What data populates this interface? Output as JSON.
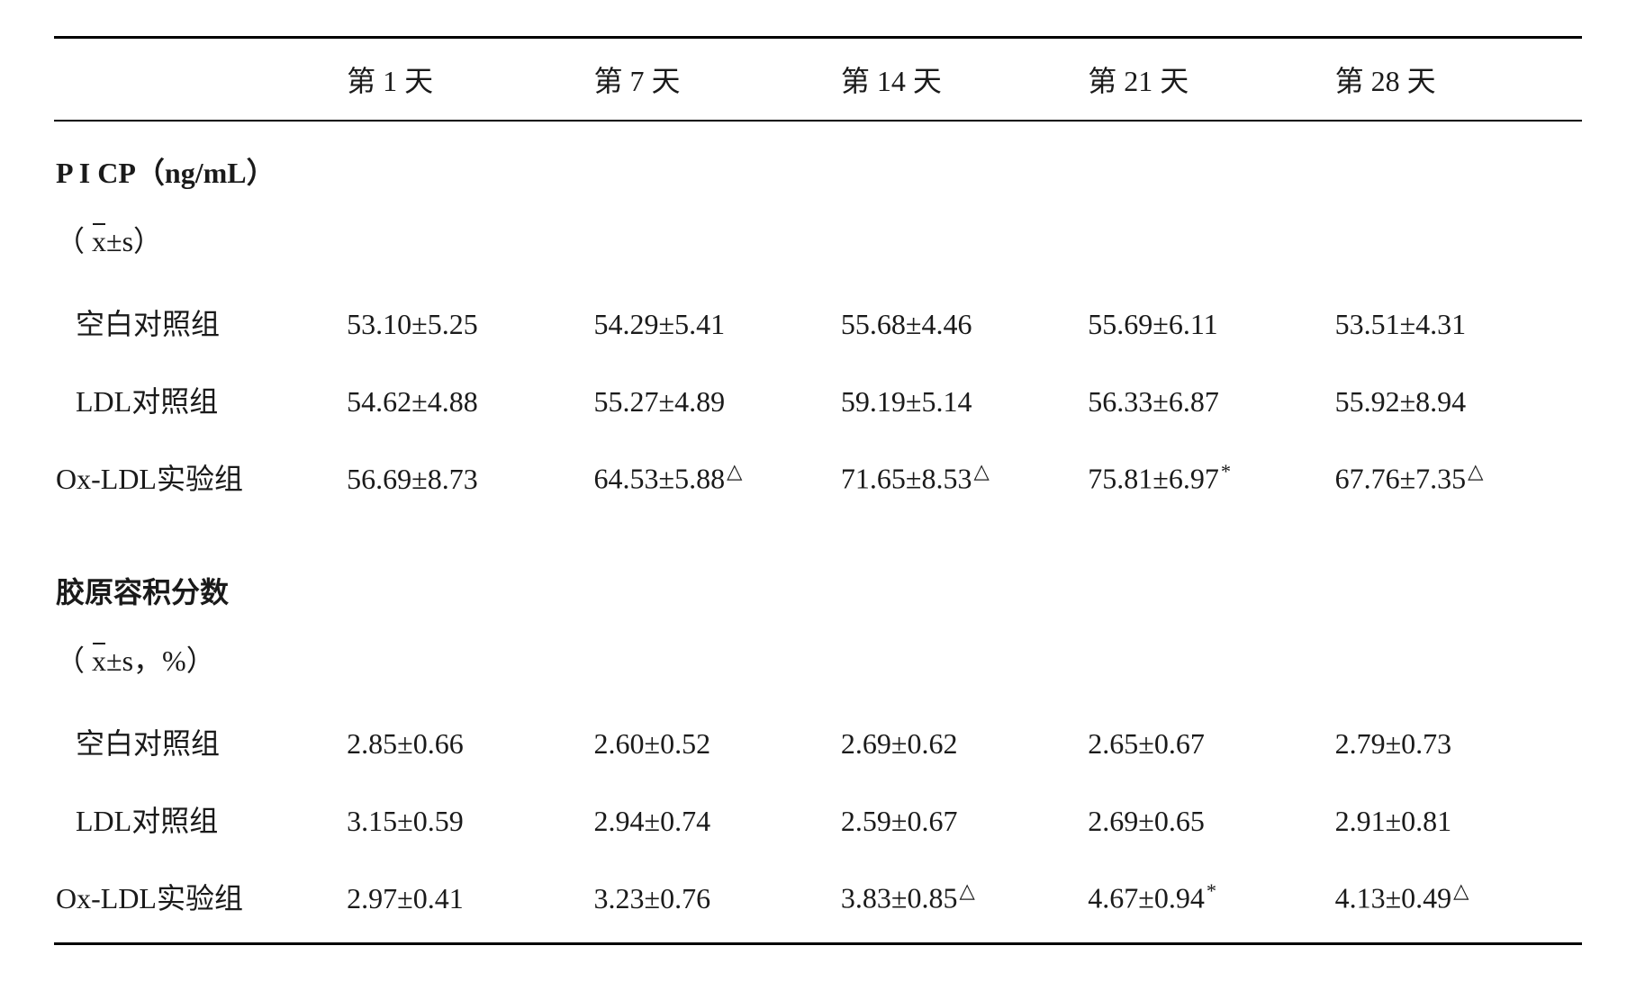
{
  "columns": [
    "",
    "第 1 天",
    "第 7 天",
    "第 14 天",
    "第 21 天",
    "第 28 天"
  ],
  "sections": [
    {
      "title": "P I CP（ng/mL）",
      "sub": "（ x̄±s）",
      "rows": [
        {
          "label": "空白对照组",
          "indent": "indent1",
          "cells": [
            {
              "v": "53.10±5.25"
            },
            {
              "v": "54.29±5.41"
            },
            {
              "v": "55.68±4.46"
            },
            {
              "v": "55.69±6.11"
            },
            {
              "v": "53.51±4.31"
            }
          ]
        },
        {
          "label": "LDL对照组",
          "indent": "indent1",
          "cells": [
            {
              "v": "54.62±4.88"
            },
            {
              "v": "55.27±4.89"
            },
            {
              "v": "59.19±5.14"
            },
            {
              "v": "56.33±6.87"
            },
            {
              "v": "55.92±8.94"
            }
          ]
        },
        {
          "label": "Ox-LDL实验组",
          "indent": "indent0",
          "cells": [
            {
              "v": "56.69±8.73"
            },
            {
              "v": "64.53±5.88",
              "mark": "△"
            },
            {
              "v": "71.65±8.53",
              "mark": "△"
            },
            {
              "v": "75.81±6.97",
              "mark": "*"
            },
            {
              "v": "67.76±7.35",
              "mark": "△"
            }
          ]
        }
      ]
    },
    {
      "title": "胶原容积分数",
      "sub": "（ x̄±s，%）",
      "rows": [
        {
          "label": "空白对照组",
          "indent": "indent1",
          "cells": [
            {
              "v": "2.85±0.66"
            },
            {
              "v": "2.60±0.52"
            },
            {
              "v": "2.69±0.62"
            },
            {
              "v": "2.65±0.67"
            },
            {
              "v": "2.79±0.73"
            }
          ]
        },
        {
          "label": "LDL对照组",
          "indent": "indent1",
          "cells": [
            {
              "v": "3.15±0.59"
            },
            {
              "v": "2.94±0.74"
            },
            {
              "v": "2.59±0.67"
            },
            {
              "v": "2.69±0.65"
            },
            {
              "v": "2.91±0.81"
            }
          ]
        },
        {
          "label": "Ox-LDL实验组",
          "indent": "indent0",
          "cells": [
            {
              "v": "2.97±0.41"
            },
            {
              "v": "3.23±0.76"
            },
            {
              "v": "3.83±0.85",
              "mark": "△"
            },
            {
              "v": "4.67±0.94",
              "mark": "*"
            },
            {
              "v": "4.13±0.49",
              "mark": "△"
            }
          ]
        }
      ]
    }
  ],
  "colors": {
    "text": "#1a1a1a",
    "rule": "#000000",
    "background": "#ffffff"
  },
  "typography": {
    "base_pt": 32,
    "family": "Times New Roman / SimSun"
  }
}
